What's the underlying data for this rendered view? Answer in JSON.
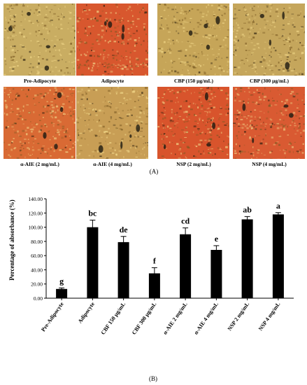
{
  "panel_a": {
    "label": "(A)",
    "images": [
      {
        "caption": "Pre-Adipocyte",
        "color": "#c9ad62"
      },
      {
        "caption": "Adipocyte",
        "color": "#d8572e"
      },
      {
        "caption": "CBP (150 μg/mL)",
        "color": "#c6a558"
      },
      {
        "caption": "CBP (300 μg/mL)",
        "color": "#c5a65c"
      },
      {
        "caption": "α-AIE (2 mg/mL)",
        "color": "#d96a34"
      },
      {
        "caption": "α-AIE (4 mg/mL)",
        "color": "#c89e55"
      },
      {
        "caption": "NSP (2 mg/mL)",
        "color": "#d8542c"
      },
      {
        "caption": "NSP (4 mg/mL)",
        "color": "#d95a32"
      }
    ]
  },
  "panel_b": {
    "label": "(B)"
  },
  "chart_data": {
    "type": "bar",
    "ylabel": "Percentage of absorbance (%)",
    "xlabel": "",
    "ylim": [
      0,
      140
    ],
    "yticks": [
      "0.00",
      "20.00",
      "40.00",
      "60.00",
      "80.00",
      "100.00",
      "120.00",
      "140.00"
    ],
    "categories": [
      "Pre-Adipocyte",
      "Adipocyte",
      "CBF 150 μg/mL",
      "CBF 300 μg/mL",
      "α-AIE 2 mg/mL",
      "α-AIE 4 mg/mL",
      "NSP 2 mg/mL",
      "NSP 4 mg/mL"
    ],
    "values": [
      13,
      100,
      79,
      35,
      90,
      68,
      111,
      118
    ],
    "errors": [
      1.5,
      10,
      8,
      8,
      9,
      6,
      4,
      2.5
    ],
    "significance": [
      "g",
      "bc",
      "de",
      "f",
      "cd",
      "e",
      "ab",
      "a"
    ],
    "bar_color": "#000000",
    "grid": false
  }
}
